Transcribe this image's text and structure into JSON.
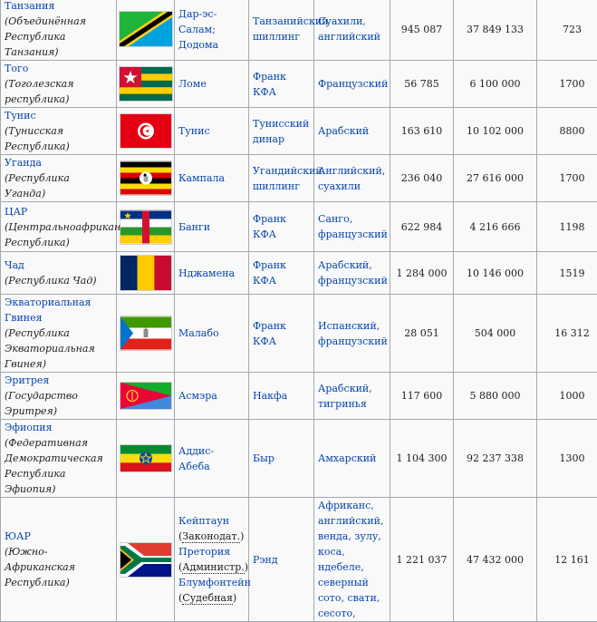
{
  "rows": [
    {
      "id": "tz",
      "name": "Танзания",
      "full": "(Объединённая Республика Танзания)",
      "flag": "tanzania-flag",
      "capital": "Дар-эс-Салам; Додома",
      "currency": "Танзанийский шиллинг",
      "language": "Суахили, английский",
      "area": "945 087",
      "population": "37 849 133",
      "gdp": "723"
    },
    {
      "id": "tg",
      "name": "Того",
      "full": "(Тоголезская республика)",
      "flag": "togo-flag",
      "capital": "Ломе",
      "currency": "Франк КФА",
      "language": "Французский",
      "area": "56 785",
      "population": "6 100 000",
      "gdp": "1700"
    },
    {
      "id": "tn",
      "name": "Тунис",
      "full": "(Тунисская Республика)",
      "flag": "tunisia-flag",
      "capital": "Тунис",
      "currency": "Тунисский динар",
      "language": "Арабский",
      "area": "163 610",
      "population": "10 102 000",
      "gdp": "8800"
    },
    {
      "id": "ug",
      "name": "Уганда",
      "full": "(Республика Уганда)",
      "flag": "uganda-flag",
      "capital": "Кампала",
      "currency": "Угандийский шиллинг",
      "language": "Английский, суахили",
      "area": "236 040",
      "population": "27 616 000",
      "gdp": "1700"
    },
    {
      "id": "cf",
      "name": "ЦАР",
      "full": "(Центральноафриканская Республика)",
      "flag": "car-flag",
      "capital": "Банги",
      "currency": "Франк КФА",
      "language": "Санго, французский",
      "area": "622 984",
      "population": "4 216 666",
      "gdp": "1198"
    },
    {
      "id": "td",
      "name": "Чад",
      "full": "(Республика Чад)",
      "flag": "chad-flag",
      "capital": "Нджамена",
      "currency": "Франк КФА",
      "language": "Арабский, французский",
      "area": "1 284 000",
      "population": "10 146 000",
      "gdp": "1519"
    },
    {
      "id": "gq",
      "name": "Экваториальная Гвинея",
      "full": "(Республика Экваториальная Гвинея)",
      "flag": "equatorial-guinea-flag",
      "capital": "Малабо",
      "currency": "Франк КФА",
      "language": "Испанский, французский",
      "area": "28 051",
      "population": "504 000",
      "gdp": "16 312"
    },
    {
      "id": "er",
      "name": "Эритрея",
      "full": "(Государство Эритрея)",
      "flag": "eritrea-flag",
      "capital": "Асмэра",
      "currency": "Накфа",
      "language": "Арабский, тигринья",
      "area": "117 600",
      "population": "5 880 000",
      "gdp": "1000"
    },
    {
      "id": "et",
      "name": "Эфиопия",
      "full": "(Федеративная Демократическая Республика Эфиопия)",
      "flag": "ethiopia-flag",
      "capital": "Аддис-Абеба",
      "currency": "Быр",
      "language": "Амхарский",
      "area": "1 104 300",
      "population": "92 237 338",
      "gdp": "1300"
    },
    {
      "id": "za",
      "name": "ЮАР",
      "full": "(Южно-Африканская Республика)",
      "flag": "south-africa-flag",
      "capital": "",
      "currency": "Рэнд",
      "language": "Африканс, английский, венда, зулу, коса, ндебеле, северный сото, свати, сесото,",
      "area": "1 221 037",
      "population": "47 432 000",
      "gdp": "12 161",
      "capitals": [
        {
          "city": "Кейптаун",
          "role": "Законодат."
        },
        {
          "city": "Претория",
          "role": "Администр."
        },
        {
          "city": "Блумфонтейн",
          "role": "Судебная"
        }
      ]
    }
  ]
}
